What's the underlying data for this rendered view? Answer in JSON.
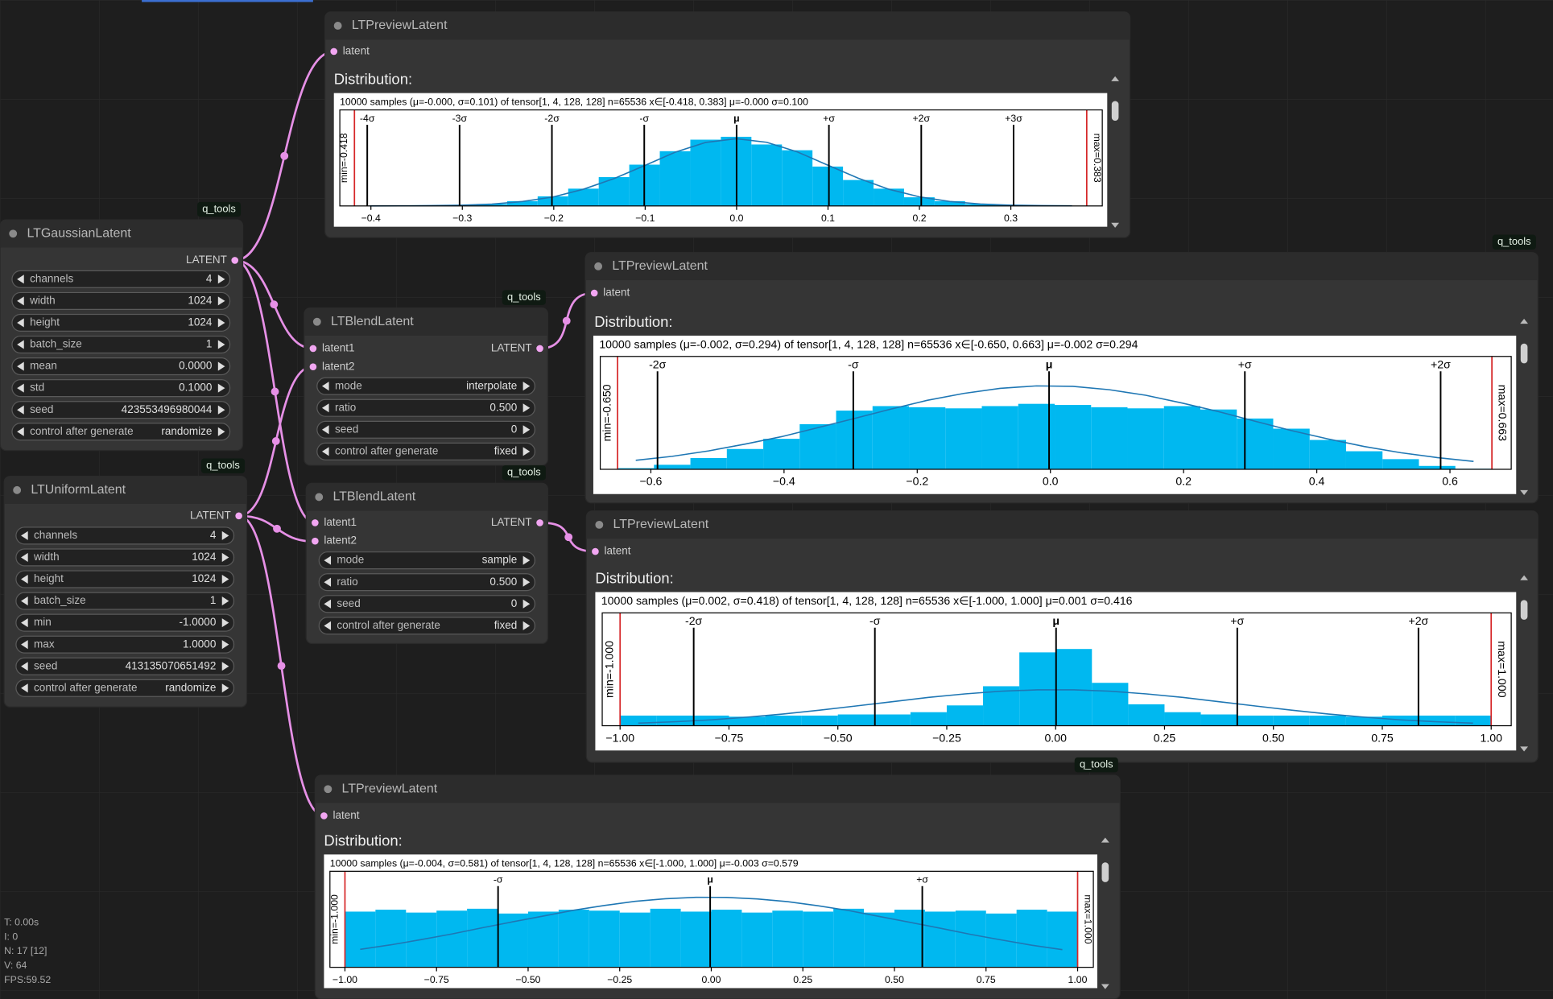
{
  "nodes": [
    {
      "title": "LTGaussianLatent",
      "badge": "q_tools",
      "outputs": [
        "LATENT"
      ],
      "widgets": [
        {
          "label": "channels",
          "value": "4"
        },
        {
          "label": "width",
          "value": "1024"
        },
        {
          "label": "height",
          "value": "1024"
        },
        {
          "label": "batch_size",
          "value": "1"
        },
        {
          "label": "mean",
          "value": "0.0000"
        },
        {
          "label": "std",
          "value": "0.1000"
        },
        {
          "label": "seed",
          "value": "423553496980044"
        },
        {
          "label": "control after generate",
          "value": "randomize"
        }
      ]
    },
    {
      "title": "LTUniformLatent",
      "badge": "q_tools",
      "outputs": [
        "LATENT"
      ],
      "widgets": [
        {
          "label": "channels",
          "value": "4"
        },
        {
          "label": "width",
          "value": "1024"
        },
        {
          "label": "height",
          "value": "1024"
        },
        {
          "label": "batch_size",
          "value": "1"
        },
        {
          "label": "min",
          "value": "-1.0000"
        },
        {
          "label": "max",
          "value": "1.0000"
        },
        {
          "label": "seed",
          "value": "413135070651492"
        },
        {
          "label": "control after generate",
          "value": "randomize"
        }
      ]
    },
    {
      "title": "LTBlendLatent",
      "badge": "q_tools",
      "inputs": [
        "latent1",
        "latent2"
      ],
      "outputs": [
        "LATENT"
      ],
      "widgets": [
        {
          "label": "mode",
          "value": "interpolate"
        },
        {
          "label": "ratio",
          "value": "0.500"
        },
        {
          "label": "seed",
          "value": "0"
        },
        {
          "label": "control after generate",
          "value": "fixed"
        }
      ]
    },
    {
      "title": "LTBlendLatent",
      "badge": "q_tools",
      "inputs": [
        "latent1",
        "latent2"
      ],
      "outputs": [
        "LATENT"
      ],
      "widgets": [
        {
          "label": "mode",
          "value": "sample"
        },
        {
          "label": "ratio",
          "value": "0.500"
        },
        {
          "label": "seed",
          "value": "0"
        },
        {
          "label": "control after generate",
          "value": "fixed"
        }
      ]
    },
    {
      "title": "LTPreviewLatent",
      "inputs": [
        "latent"
      ],
      "heading": "Distribution:"
    },
    {
      "title": "LTPreviewLatent",
      "badge": "q_tools",
      "inputs": [
        "latent"
      ],
      "heading": "Distribution:"
    },
    {
      "title": "LTPreviewLatent",
      "inputs": [
        "latent"
      ],
      "heading": "Distribution:"
    },
    {
      "title": "LTPreviewLatent",
      "badge": "q_tools",
      "inputs": [
        "latent"
      ],
      "heading": "Distribution:"
    }
  ],
  "chart_data": [
    {
      "type": "histogram",
      "title": "10000 samples (μ=-0.000, σ=0.101) of tensor[1, 4, 128, 128] n=65536 x∈[-0.418, 0.383] μ=-0.000 σ=0.100",
      "color": "#00b8f0",
      "bins": [
        -0.418,
        -0.3846,
        -0.3512,
        -0.3178,
        -0.2844,
        -0.251,
        -0.2176,
        -0.1842,
        -0.1508,
        -0.1174,
        -0.084,
        -0.0506,
        -0.0172,
        0.0162,
        0.0496,
        0.083,
        0.1164,
        0.1498,
        0.1832,
        0.2166,
        0.25,
        0.2834,
        0.3168,
        0.3502,
        0.3836
      ],
      "counts": [
        0,
        0,
        0.5,
        1,
        2,
        5,
        10,
        18,
        30,
        43,
        57,
        69,
        72,
        64,
        58,
        41,
        27,
        18,
        9,
        5,
        2,
        1,
        0,
        0
      ],
      "curve": {
        "color": "#1f77b4",
        "values": [
          0,
          0.1,
          0.3,
          0.8,
          1.9,
          4.6,
          9.3,
          17.4,
          28.5,
          42,
          55.9,
          66.1,
          70,
          66.3,
          56.3,
          42.5,
          28.9,
          17.4,
          9.5,
          4.6,
          2,
          0.8,
          0.3,
          0.1
        ]
      },
      "xlim": [
        -0.434,
        0.4
      ],
      "ylim": [
        0,
        100
      ],
      "xticks": [
        {
          "value": -0.4,
          "label": "−0.4"
        },
        {
          "value": -0.3,
          "label": "−0.3"
        },
        {
          "value": -0.2,
          "label": "−0.2"
        },
        {
          "value": -0.1,
          "label": "−0.1"
        },
        {
          "value": 0,
          "label": "0.0"
        },
        0.1,
        0.2,
        0.3
      ],
      "sigma_lines": [
        {
          "value": -0.404,
          "label": "-4σ"
        },
        {
          "value": -0.303,
          "label": "-3σ"
        },
        {
          "value": -0.202,
          "label": "-2σ"
        },
        {
          "value": -0.101,
          "label": "-σ"
        },
        {
          "value": 0,
          "label": "μ"
        },
        {
          "value": 0.101,
          "label": "+σ"
        },
        {
          "value": 0.202,
          "label": "+2σ"
        },
        {
          "value": 0.303,
          "label": "+3σ"
        }
      ],
      "range_lines": [
        {
          "value": -0.418,
          "label": "min=-0.418"
        },
        {
          "value": 0.383,
          "label": "max=0.383"
        }
      ],
      "range_color": "#d62728"
    },
    {
      "type": "histogram",
      "title": "10000 samples (μ=-0.002, σ=0.294) of tensor[1, 4, 128, 128] n=65536 x∈[-0.650, 0.663] μ=-0.002 σ=0.294",
      "color": "#00b8f0",
      "bins": [
        -0.65,
        -0.5953,
        -0.5406,
        -0.4859,
        -0.4312,
        -0.3765,
        -0.3218,
        -0.2671,
        -0.2124,
        -0.1577,
        -0.103,
        -0.0483,
        0.0064,
        0.0611,
        0.1158,
        0.1705,
        0.2252,
        0.2799,
        0.3346,
        0.3893,
        0.444,
        0.4987,
        0.5534,
        0.6081,
        0.6628
      ],
      "counts": [
        1,
        4,
        10,
        18,
        27,
        40,
        52,
        56,
        55,
        54,
        56,
        58,
        57,
        55,
        54,
        56,
        53,
        45,
        36,
        26,
        16,
        9,
        3,
        0.5
      ],
      "curve": {
        "color": "#1f77b4",
        "values": [
          8,
          11.5,
          16.3,
          22.3,
          28.9,
          36.9,
          45,
          53.3,
          61.1,
          67.2,
          71.7,
          73.9,
          73.5,
          70.5,
          65.6,
          58.7,
          51.1,
          42.6,
          34.3,
          26.9,
          20.2,
          14.7,
          10.4,
          7
        ]
      },
      "xlim": [
        -0.676,
        0.692
      ],
      "ylim": [
        0,
        100
      ],
      "xticks": [
        {
          "value": -0.6,
          "label": "−0.6"
        },
        {
          "value": -0.4,
          "label": "−0.4"
        },
        {
          "value": -0.2,
          "label": "−0.2"
        },
        {
          "value": 0,
          "label": "0.0"
        },
        0.2,
        0.4,
        0.6
      ],
      "sigma_lines": [
        {
          "value": -0.59,
          "label": "-2σ"
        },
        {
          "value": -0.296,
          "label": "-σ"
        },
        {
          "value": -0.002,
          "label": "μ"
        },
        {
          "value": 0.292,
          "label": "+σ"
        },
        {
          "value": 0.586,
          "label": "+2σ"
        }
      ],
      "range_lines": [
        {
          "value": -0.65,
          "label": "min=-0.650"
        },
        {
          "value": 0.663,
          "label": "max=0.663"
        }
      ],
      "range_color": "#d62728"
    },
    {
      "type": "histogram",
      "title": "10000 samples (μ=0.002, σ=0.418) of tensor[1, 4, 128, 128] n=65536 x∈[-1.000, 1.000] μ=0.001 σ=0.416",
      "color": "#00b8f0",
      "bins": [
        -1,
        -0.9167,
        -0.8333,
        -0.75,
        -0.6667,
        -0.5833,
        -0.5,
        -0.4167,
        -0.3333,
        -0.25,
        -0.1667,
        -0.0833,
        0,
        0.0833,
        0.1667,
        0.25,
        0.3333,
        0.4167,
        0.5,
        0.5833,
        0.6667,
        0.75,
        0.8333,
        0.9167,
        1
      ],
      "counts": [
        9,
        9,
        9,
        8,
        9,
        9,
        10,
        10,
        12,
        18,
        35,
        65,
        68,
        38,
        19,
        12,
        10,
        9,
        9,
        9,
        8,
        9,
        9,
        9
      ],
      "curve": {
        "color": "#1f77b4",
        "values": [
          2.3,
          3.5,
          5.2,
          7.6,
          10.4,
          13.8,
          17.5,
          21.3,
          25.1,
          28.2,
          30.6,
          31.8,
          31.8,
          30.6,
          28.2,
          25.1,
          21.3,
          17.5,
          13.8,
          10.4,
          7.6,
          5.2,
          3.5,
          2.3
        ]
      },
      "xlim": [
        -1.041,
        1.046
      ],
      "ylim": [
        0,
        100
      ],
      "xticks": [
        {
          "value": -1,
          "label": "−1.00"
        },
        {
          "value": -0.75,
          "label": "−0.75"
        },
        {
          "value": -0.5,
          "label": "−0.50"
        },
        {
          "value": -0.25,
          "label": "−0.25"
        },
        {
          "value": 0,
          "label": "0.00"
        },
        0.25,
        {
          "value": 0.5,
          "label": "0.50"
        },
        0.75,
        {
          "value": 1,
          "label": "1.00"
        }
      ],
      "sigma_lines": [
        {
          "value": -0.831,
          "label": "-2σ"
        },
        {
          "value": -0.415,
          "label": "-σ"
        },
        {
          "value": 0.001,
          "label": "μ"
        },
        {
          "value": 0.417,
          "label": "+σ"
        },
        {
          "value": 0.833,
          "label": "+2σ"
        }
      ],
      "range_lines": [
        {
          "value": -1,
          "label": "min=-1.000"
        },
        {
          "value": 1,
          "label": "max=1.000"
        }
      ],
      "range_color": "#d62728"
    },
    {
      "type": "histogram",
      "title": "10000 samples (μ=-0.004, σ=0.581) of tensor[1, 4, 128, 128] n=65536 x∈[-1.000, 1.000] μ=-0.003 σ=0.579",
      "color": "#00b8f0",
      "bins": [
        -1,
        -0.9167,
        -0.8333,
        -0.75,
        -0.6667,
        -0.5833,
        -0.5,
        -0.4167,
        -0.3333,
        -0.25,
        -0.1667,
        -0.0833,
        0,
        0.0833,
        0.1667,
        0.25,
        0.3333,
        0.4167,
        0.5,
        0.5833,
        0.6667,
        0.75,
        0.8333,
        0.9167,
        1
      ],
      "counts": [
        58,
        60,
        57,
        59,
        61,
        56,
        58,
        60,
        59,
        57,
        61,
        58,
        60,
        57,
        59,
        58,
        61,
        57,
        60,
        58,
        59,
        56,
        60,
        58
      ],
      "curve": {
        "color": "#1f77b4",
        "values": [
          18.7,
          23.4,
          28.9,
          34.7,
          41.2,
          47.4,
          53.4,
          59.5,
          64.4,
          68.7,
          71.4,
          72.9,
          72.8,
          71.2,
          68.4,
          64.1,
          59.1,
          53,
          46.9,
          40.7,
          34.3,
          28.5,
          23,
          18.4
        ]
      },
      "xlim": [
        -1.041,
        1.043
      ],
      "ylim": [
        0,
        100
      ],
      "xticks": [
        {
          "value": -1,
          "label": "−1.00"
        },
        {
          "value": -0.75,
          "label": "−0.75"
        },
        {
          "value": -0.5,
          "label": "−0.50"
        },
        {
          "value": -0.25,
          "label": "−0.25"
        },
        {
          "value": 0,
          "label": "0.00"
        },
        0.25,
        {
          "value": 0.5,
          "label": "0.50"
        },
        0.75,
        {
          "value": 1,
          "label": "1.00"
        }
      ],
      "sigma_lines": [
        {
          "value": -0.582,
          "label": "-σ"
        },
        {
          "value": -0.003,
          "label": "μ"
        },
        {
          "value": 0.576,
          "label": "+σ"
        }
      ],
      "range_lines": [
        {
          "value": -1,
          "label": "min=-1.000"
        },
        {
          "value": 1,
          "label": "max=1.000"
        }
      ],
      "range_color": "#d62728"
    }
  ],
  "stats": [
    "T: 0.00s",
    "I: 0",
    "N: 17 [12]",
    "V: 64",
    "FPS:59.52"
  ]
}
